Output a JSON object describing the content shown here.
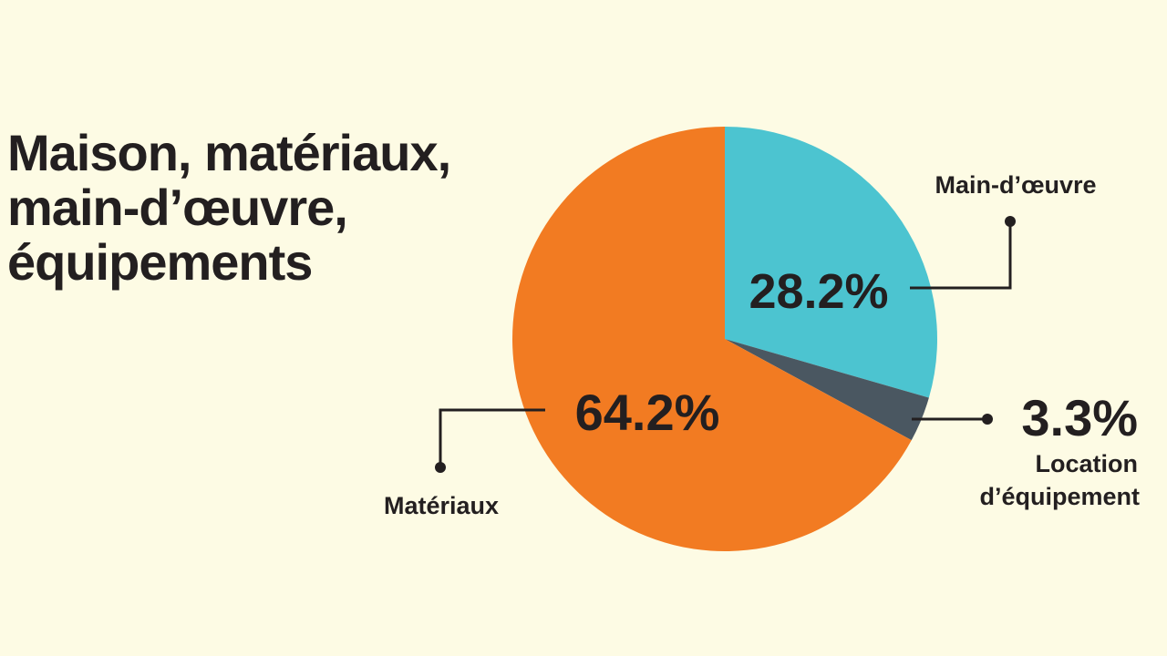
{
  "chart_data": {
    "type": "pie",
    "title": "Maison, matériaux,\nmain-d’œuvre,\néquipements",
    "start_angle": "12 o'clock",
    "direction": "clockwise",
    "slices": [
      {
        "label": "Main-d’œuvre",
        "value": 28.2,
        "value_label": "28.2%",
        "color": "#4cc4d0"
      },
      {
        "label": "Location d’équipement",
        "label_lines": [
          "Location",
          "d’équipement"
        ],
        "value": 3.3,
        "value_label": "3.3%",
        "color": "#4a5761"
      },
      {
        "label": "Matériaux",
        "value": 64.2,
        "value_label": "64.2%",
        "color": "#f27b22"
      }
    ],
    "background": "#fdfbe4",
    "text_color": "#231f20"
  }
}
